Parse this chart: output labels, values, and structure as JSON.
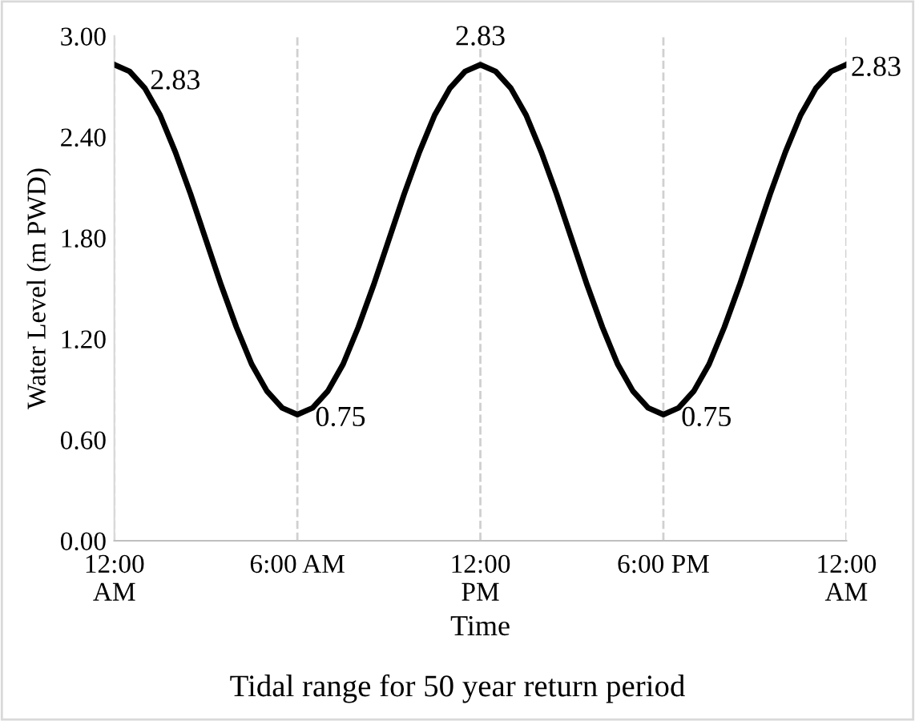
{
  "chart_data": {
    "type": "line",
    "title": "Tidal range for 50 year return period",
    "xlabel": "Time",
    "ylabel": "Water Level (m PWD)",
    "x": [
      0,
      0.5,
      1,
      1.5,
      2,
      2.5,
      3,
      3.5,
      4,
      4.5,
      5,
      5.5,
      6,
      6.5,
      7,
      7.5,
      8,
      8.5,
      9,
      9.5,
      10,
      10.5,
      11,
      11.5,
      12,
      12.5,
      13,
      13.5,
      14,
      14.5,
      15,
      15.5,
      16,
      16.5,
      17,
      17.5,
      18,
      18.5,
      19,
      19.5,
      20,
      20.5,
      21,
      21.5,
      22,
      22.5,
      23,
      23.5,
      24
    ],
    "series": [
      {
        "color": "#000000",
        "values": [
          2.83,
          2.79,
          2.69,
          2.53,
          2.31,
          2.06,
          1.79,
          1.52,
          1.27,
          1.05,
          0.89,
          0.79,
          0.75,
          0.79,
          0.89,
          1.05,
          1.27,
          1.52,
          1.79,
          2.06,
          2.31,
          2.53,
          2.69,
          2.79,
          2.83,
          2.79,
          2.69,
          2.53,
          2.31,
          2.06,
          1.79,
          1.52,
          1.27,
          1.05,
          0.89,
          0.79,
          0.75,
          0.79,
          0.89,
          1.05,
          1.27,
          1.52,
          1.79,
          2.06,
          2.31,
          2.53,
          2.69,
          2.79,
          2.83
        ]
      }
    ],
    "xlim": [
      0,
      24
    ],
    "xticks": [
      {
        "value": 0,
        "label": "12:00\nAM"
      },
      {
        "value": 6,
        "label": "6:00 AM"
      },
      {
        "value": 12,
        "label": "12:00\nPM"
      },
      {
        "value": 18,
        "label": "6:00 PM"
      },
      {
        "value": 24,
        "label": "12:00\nAM"
      }
    ],
    "ylim": [
      0,
      3
    ],
    "yticks": [
      {
        "value": 0,
        "label": "0.00"
      },
      {
        "value": 0.6,
        "label": "0.60"
      },
      {
        "value": 1.2,
        "label": "1.20"
      },
      {
        "value": 1.8,
        "label": "1.80"
      },
      {
        "value": 2.4,
        "label": "2.40"
      },
      {
        "value": 3,
        "label": "3.00"
      }
    ],
    "grid": "x",
    "line_style": "solid",
    "marker": "none",
    "annotations": [
      {
        "text": "2.83",
        "x": 0,
        "y": 2.83
      },
      {
        "text": "0.75",
        "x": 6,
        "y": 0.75
      },
      {
        "text": "2.83",
        "x": 12,
        "y": 2.83
      },
      {
        "text": "0.75",
        "x": 18,
        "y": 0.75
      },
      {
        "text": "2.83",
        "x": 24,
        "y": 2.83
      }
    ]
  }
}
